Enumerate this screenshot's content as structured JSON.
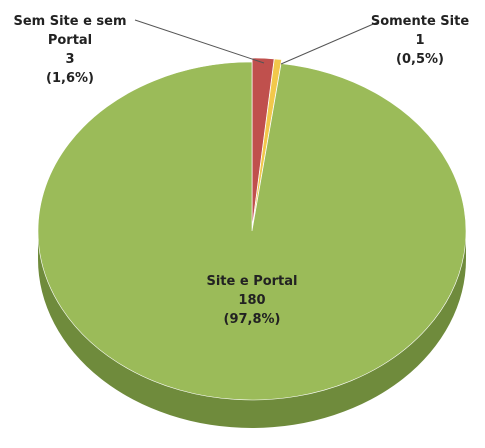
{
  "chart_data": {
    "type": "pie3d",
    "categories": [
      "Sem Site e sem Portal",
      "Somente Site",
      "Site e Portal"
    ],
    "values": [
      3,
      1,
      180
    ],
    "percent_labels": [
      "(1,6%)",
      "(0,5%)",
      "(97,8%)"
    ],
    "colors": [
      "#c0504d",
      "#f2c84b",
      "#9bbb59"
    ]
  }
}
